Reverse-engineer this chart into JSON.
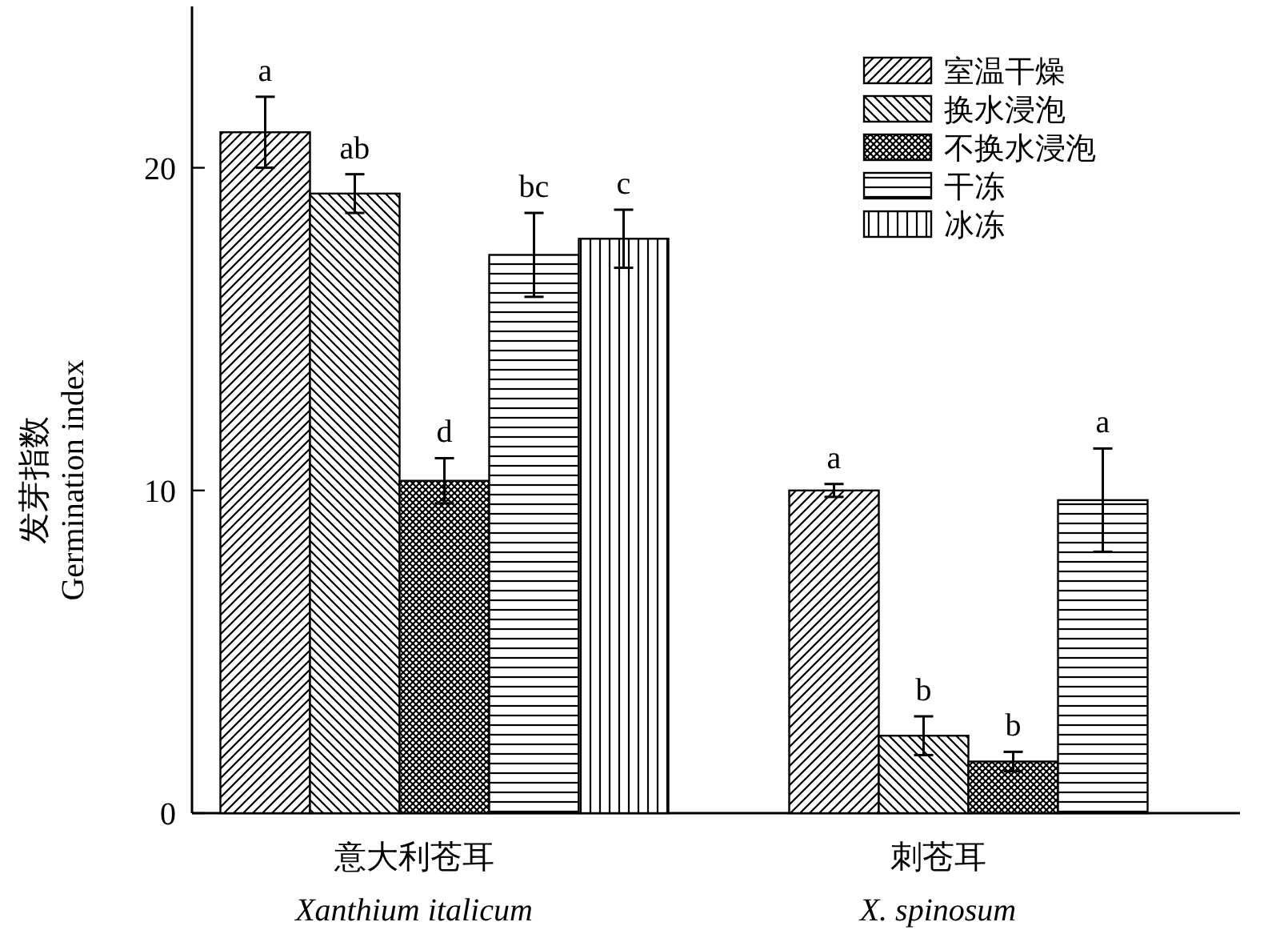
{
  "chart_data": {
    "type": "bar",
    "ylabel": "发芽指数\nGermination index",
    "categories": [
      "意大利苍耳\nXanthium italicum",
      "刺苍耳\nX. spinosum"
    ],
    "ylim": [
      0,
      25
    ],
    "yticks": [
      0,
      10,
      20
    ],
    "legend": "top right",
    "grid": false,
    "series": [
      {
        "name": "室温干燥",
        "color": "#000000",
        "values": [
          21.1,
          10.0
        ],
        "errors": [
          1.1,
          0.2
        ],
        "value_labels": [
          "a",
          "a"
        ]
      },
      {
        "name": "换水浸泡",
        "color": "#000000",
        "values": [
          19.2,
          2.4
        ],
        "errors": [
          0.6,
          0.6
        ],
        "value_labels": [
          "ab",
          "b"
        ]
      },
      {
        "name": "不换水浸泡",
        "color": "#000000",
        "values": [
          10.3,
          1.6
        ],
        "errors": [
          0.7,
          0.3
        ],
        "value_labels": [
          "d",
          "b"
        ]
      },
      {
        "name": "干冻",
        "color": "#000000",
        "values": [
          17.3,
          9.7
        ],
        "errors": [
          1.3,
          1.6
        ],
        "value_labels": [
          "bc",
          "a"
        ]
      },
      {
        "name": "冰冻",
        "color": "#000000",
        "values": [
          17.8,
          null
        ],
        "errors": [
          0.9,
          null
        ],
        "value_labels": [
          "c",
          null
        ]
      }
    ]
  }
}
